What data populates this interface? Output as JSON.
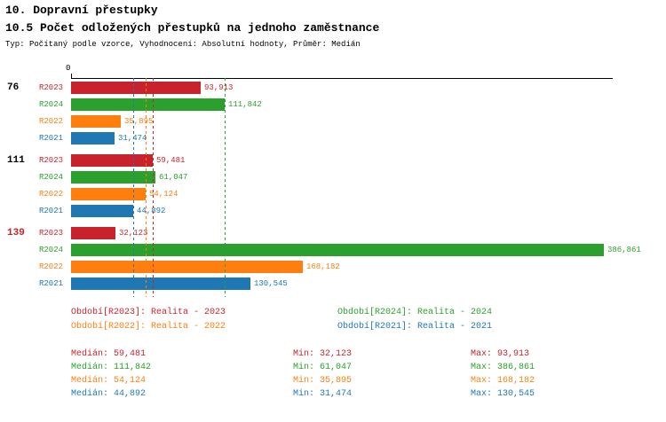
{
  "header": {
    "title": "10. Dopravní přestupky",
    "subtitle": "10.5 Počet odložených přestupků na jednoho zaměstnance",
    "meta": "Typ: Počítaný podle vzorce, Vyhodnocení: Absolutní hodnoty, Průměr: Medián"
  },
  "chart_data": {
    "type": "bar",
    "orientation": "horizontal",
    "x_axis": {
      "zero_label": "0",
      "min": 0,
      "max": 386861,
      "grid": false
    },
    "series": [
      {
        "id": "R2023",
        "color": "#c8232c"
      },
      {
        "id": "R2024",
        "color": "#2ca02c"
      },
      {
        "id": "R2022",
        "color": "#ff7f0e"
      },
      {
        "id": "R2021",
        "color": "#1f77b4"
      }
    ],
    "groups": [
      {
        "label": "76",
        "label_color": "#000000",
        "bars": [
          {
            "series": "R2023",
            "value": 93913,
            "label": "93,913"
          },
          {
            "series": "R2024",
            "value": 111842,
            "label": "111,842"
          },
          {
            "series": "R2022",
            "value": 35895,
            "label": "35,895"
          },
          {
            "series": "R2021",
            "value": 31474,
            "label": "31,474"
          }
        ]
      },
      {
        "label": "111",
        "label_color": "#000000",
        "bars": [
          {
            "series": "R2023",
            "value": 59481,
            "label": "59,481"
          },
          {
            "series": "R2024",
            "value": 61047,
            "label": "61,047"
          },
          {
            "series": "R2022",
            "value": 54124,
            "label": "54,124"
          },
          {
            "series": "R2021",
            "value": 44892,
            "label": "44,892"
          }
        ]
      },
      {
        "label": "139",
        "label_color": "#c8232c",
        "bars": [
          {
            "series": "R2023",
            "value": 32123,
            "label": "32,123"
          },
          {
            "series": "R2024",
            "value": 386861,
            "label": "386,861"
          },
          {
            "series": "R2022",
            "value": 168182,
            "label": "168,182"
          },
          {
            "series": "R2021",
            "value": 130545,
            "label": "130,545"
          }
        ]
      }
    ],
    "median_lines": [
      {
        "series": "R2023",
        "value": 59481
      },
      {
        "series": "R2024",
        "value": 111842
      },
      {
        "series": "R2022",
        "value": 54124
      },
      {
        "series": "R2021",
        "value": 44892
      }
    ],
    "legend": [
      {
        "series": "R2023",
        "label": "Období[R2023]:",
        "text": "Realita - 2023"
      },
      {
        "series": "R2024",
        "label": "Období[R2024]:",
        "text": "Realita - 2024"
      },
      {
        "series": "R2022",
        "label": "Období[R2022]:",
        "text": "Realita - 2022"
      },
      {
        "series": "R2021",
        "label": "Období[R2021]:",
        "text": "Realita - 2021"
      }
    ],
    "stats_labels": {
      "median": "Medián",
      "min": "Min",
      "max": "Max"
    },
    "stats": [
      {
        "series": "R2023",
        "median": "59,481",
        "min": "32,123",
        "max": "93,913"
      },
      {
        "series": "R2024",
        "median": "111,842",
        "min": "61,047",
        "max": "386,861"
      },
      {
        "series": "R2022",
        "median": "54,124",
        "min": "35,895",
        "max": "168,182"
      },
      {
        "series": "R2021",
        "median": "44,892",
        "min": "31,474",
        "max": "130,545"
      }
    ]
  }
}
